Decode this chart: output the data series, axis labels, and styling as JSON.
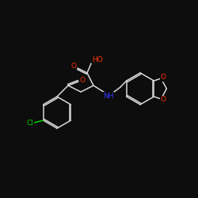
{
  "bg_color": "#0d0d0d",
  "bond_color": "#d8d8d8",
  "atom_colors": {
    "O": "#ff3300",
    "N": "#3333ff",
    "Cl": "#00cc00",
    "C": "#d8d8d8"
  },
  "figsize": [
    2.5,
    2.5
  ],
  "dpi": 100
}
